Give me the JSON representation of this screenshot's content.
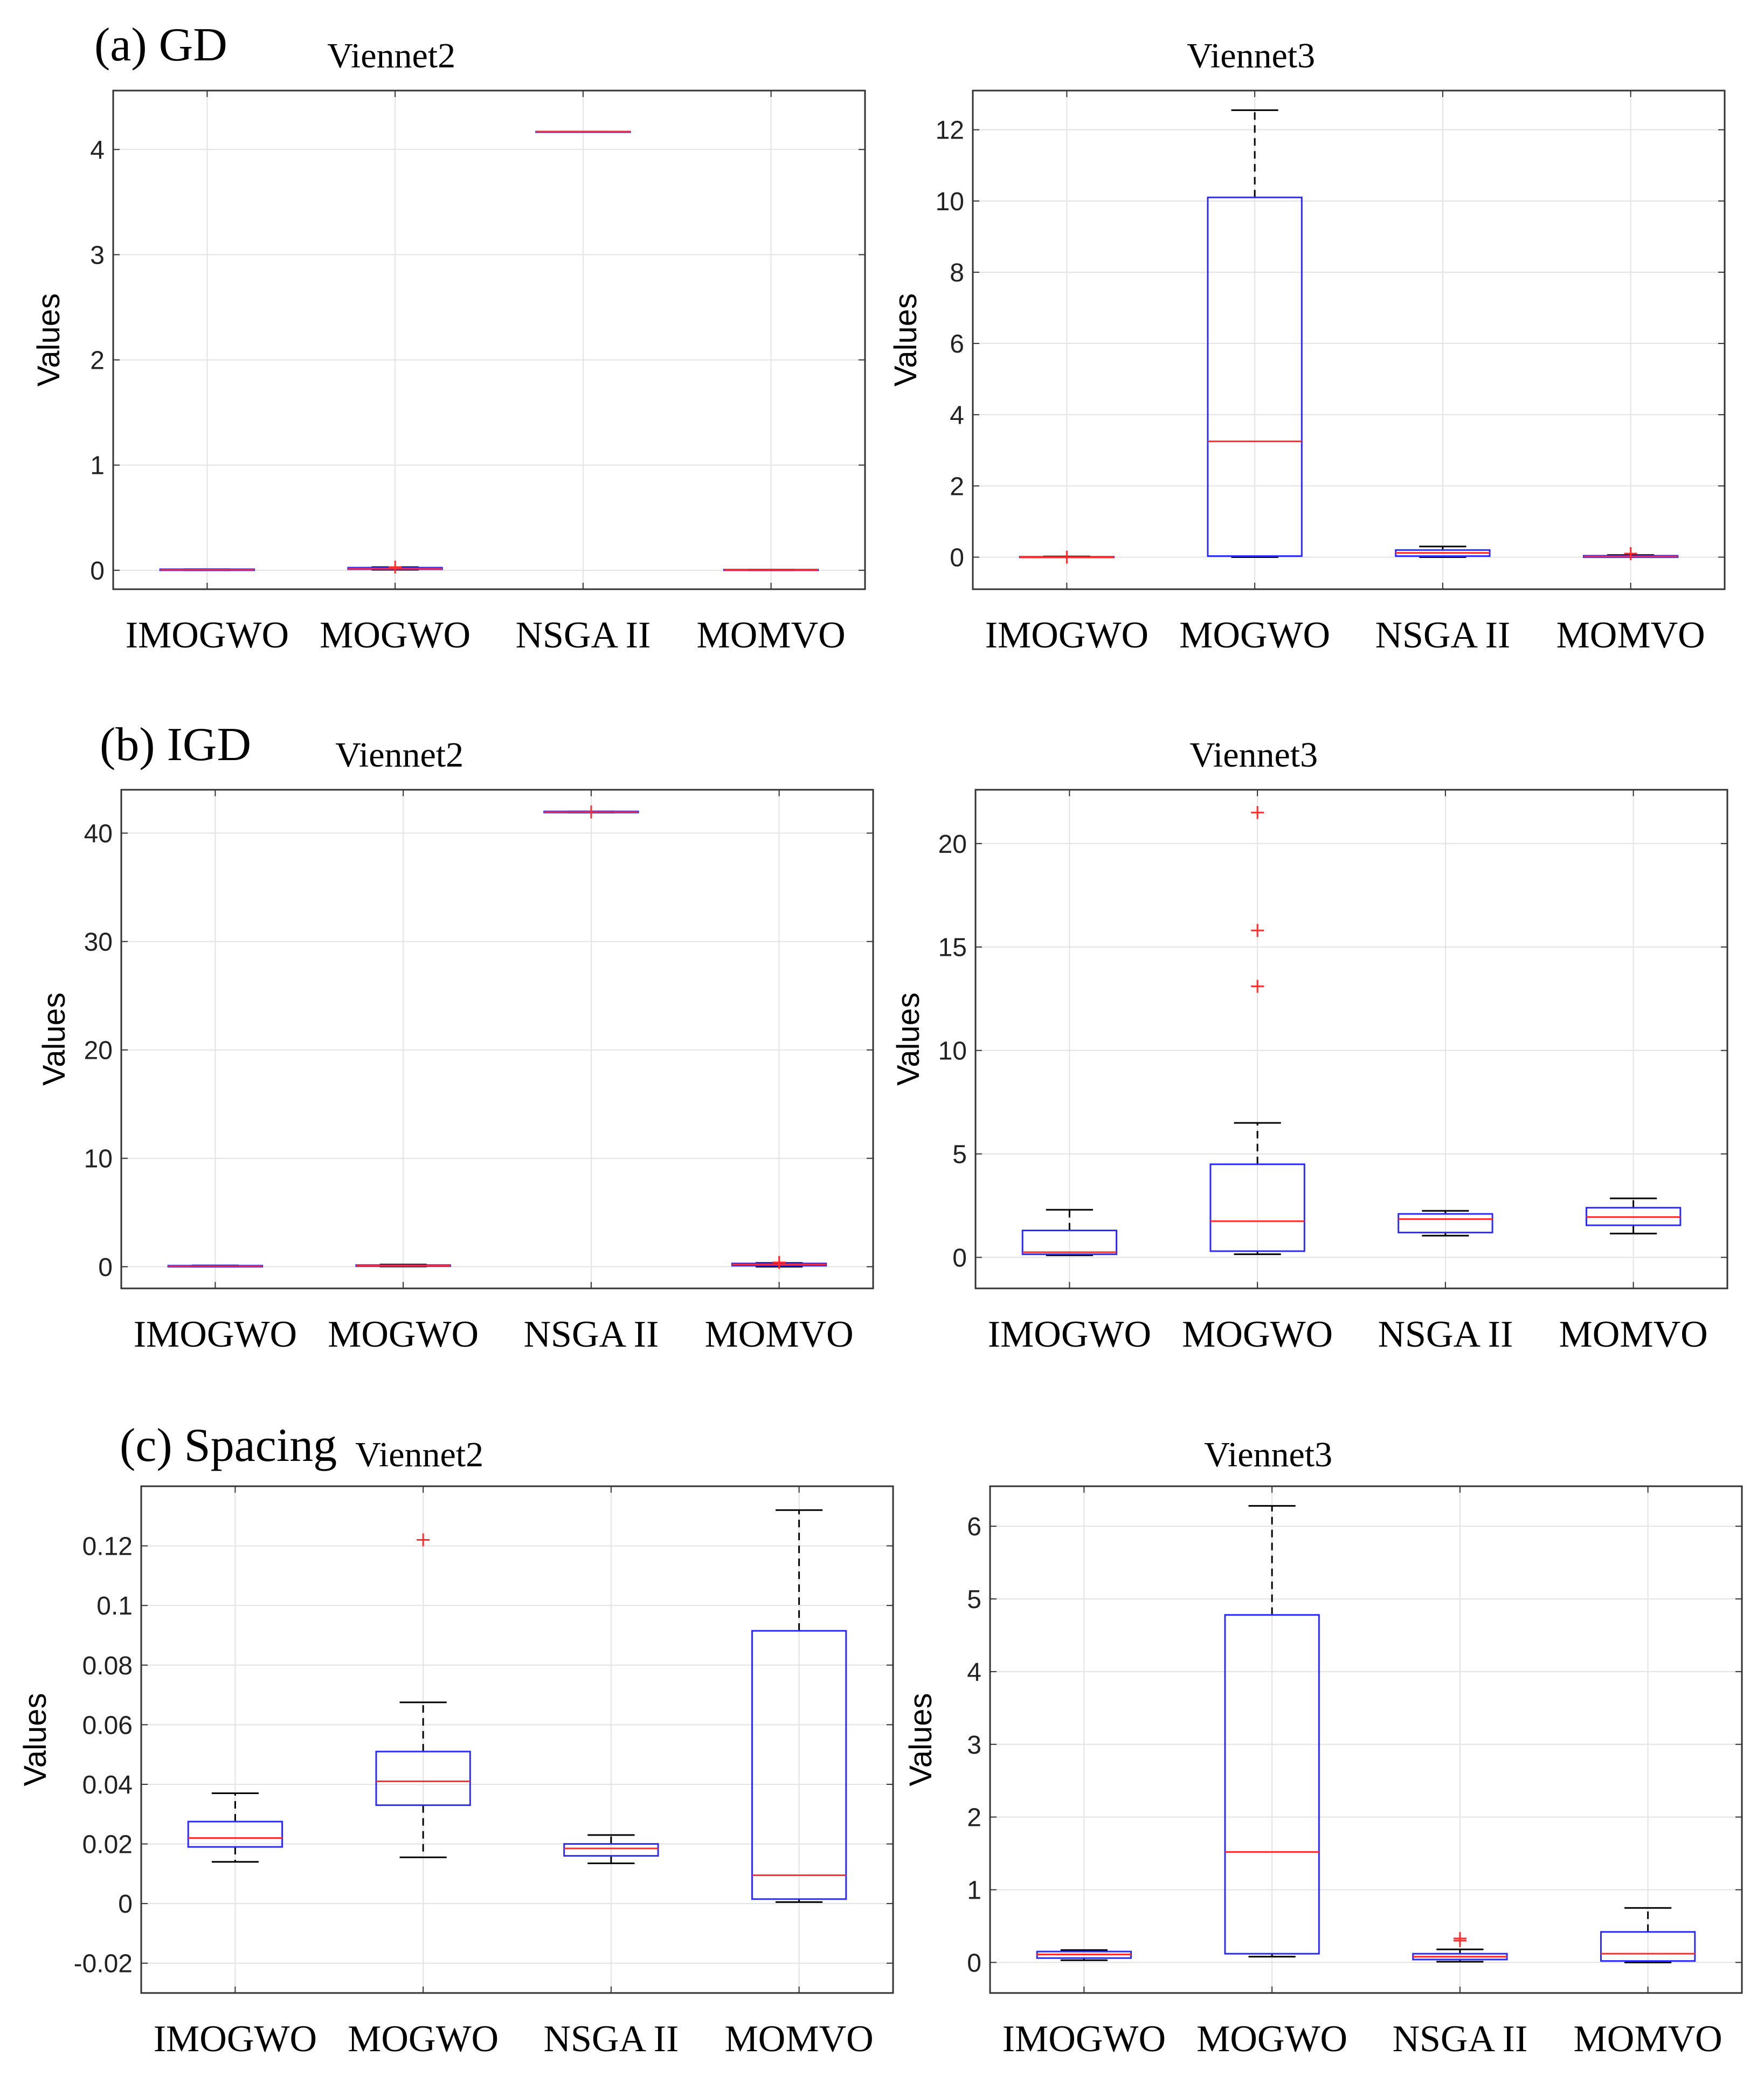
{
  "figure": {
    "section_labels": [
      "(a) GD",
      "(b) IGD",
      "(c) Spacing"
    ]
  },
  "chart_data": [
    {
      "type": "box",
      "section": "(a) GD",
      "title": "Viennet2",
      "ylabel": "Values",
      "categories": [
        "IMOGWO",
        "MOGWO",
        "NSGA II",
        "MOMVO"
      ],
      "ylim": [
        -0.18,
        4.56
      ],
      "yticks": [
        0,
        1,
        2,
        3,
        4
      ],
      "ytick_labels": [
        "0",
        "1",
        "2",
        "3",
        "4"
      ],
      "grid": true,
      "boxes": [
        {
          "q1": 0.0,
          "median": 0.005,
          "q3": 0.01,
          "whisker_low": 0.0,
          "whisker_high": 0.01,
          "outliers": []
        },
        {
          "q1": 0.01,
          "median": 0.015,
          "q3": 0.025,
          "whisker_low": 0.005,
          "whisker_high": 0.03,
          "outliers": [
            0.03
          ]
        },
        {
          "q1": 4.17,
          "median": 4.17,
          "q3": 4.17,
          "whisker_low": 4.17,
          "whisker_high": 4.17,
          "outliers": []
        },
        {
          "q1": 0.0,
          "median": 0.003,
          "q3": 0.006,
          "whisker_low": 0.0,
          "whisker_high": 0.006,
          "outliers": []
        }
      ]
    },
    {
      "type": "box",
      "section": "(a) GD",
      "title": "Viennet3",
      "ylabel": "Values",
      "categories": [
        "IMOGWO",
        "MOGWO",
        "NSGA II",
        "MOMVO"
      ],
      "ylim": [
        -0.9,
        13.1
      ],
      "yticks": [
        0,
        2,
        4,
        6,
        8,
        10,
        12
      ],
      "ytick_labels": [
        "0",
        "2",
        "4",
        "6",
        "8",
        "10",
        "12"
      ],
      "grid": true,
      "boxes": [
        {
          "q1": 0.0,
          "median": 0.0,
          "q3": 0.01,
          "whisker_low": 0.0,
          "whisker_high": 0.02,
          "outliers": [
            0.0
          ]
        },
        {
          "q1": 0.03,
          "median": 3.25,
          "q3": 10.1,
          "whisker_low": 0.0,
          "whisker_high": 12.55,
          "outliers": []
        },
        {
          "q1": 0.03,
          "median": 0.12,
          "q3": 0.2,
          "whisker_low": 0.0,
          "whisker_high": 0.3,
          "outliers": []
        },
        {
          "q1": 0.0,
          "median": 0.02,
          "q3": 0.04,
          "whisker_low": 0.0,
          "whisker_high": 0.06,
          "outliers": [
            0.1
          ]
        }
      ]
    },
    {
      "type": "box",
      "section": "(b) IGD",
      "title": "Viennet2",
      "ylabel": "Values",
      "categories": [
        "IMOGWO",
        "MOGWO",
        "NSGA II",
        "MOMVO"
      ],
      "ylim": [
        -2.0,
        44.0
      ],
      "yticks": [
        0,
        10,
        20,
        30,
        40
      ],
      "ytick_labels": [
        "0",
        "10",
        "20",
        "30",
        "40"
      ],
      "grid": true,
      "boxes": [
        {
          "q1": 0.0,
          "median": 0.05,
          "q3": 0.1,
          "whisker_low": 0.0,
          "whisker_high": 0.12,
          "outliers": []
        },
        {
          "q1": 0.05,
          "median": 0.1,
          "q3": 0.15,
          "whisker_low": 0.02,
          "whisker_high": 0.2,
          "outliers": []
        },
        {
          "q1": 41.9,
          "median": 41.95,
          "q3": 42.0,
          "whisker_low": 41.9,
          "whisker_high": 42.0,
          "outliers": [
            41.95
          ]
        },
        {
          "q1": 0.1,
          "median": 0.2,
          "q3": 0.3,
          "whisker_low": 0.0,
          "whisker_high": 0.35,
          "outliers": [
            0.4
          ]
        }
      ]
    },
    {
      "type": "box",
      "section": "(b) IGD",
      "title": "Viennet3",
      "ylabel": "Values",
      "categories": [
        "IMOGWO",
        "MOGWO",
        "NSGA II",
        "MOMVO"
      ],
      "ylim": [
        -1.5,
        22.6
      ],
      "yticks": [
        0,
        5,
        10,
        15,
        20
      ],
      "ytick_labels": [
        "0",
        "5",
        "10",
        "15",
        "20"
      ],
      "grid": true,
      "boxes": [
        {
          "q1": 0.15,
          "median": 0.25,
          "q3": 1.3,
          "whisker_low": 0.1,
          "whisker_high": 2.3,
          "outliers": []
        },
        {
          "q1": 0.3,
          "median": 1.75,
          "q3": 4.5,
          "whisker_low": 0.15,
          "whisker_high": 6.5,
          "outliers": [
            13.1,
            15.8,
            21.5
          ]
        },
        {
          "q1": 1.2,
          "median": 1.85,
          "q3": 2.1,
          "whisker_low": 1.05,
          "whisker_high": 2.25,
          "outliers": []
        },
        {
          "q1": 1.55,
          "median": 1.95,
          "q3": 2.4,
          "whisker_low": 1.15,
          "whisker_high": 2.85,
          "outliers": []
        }
      ]
    },
    {
      "type": "box",
      "section": "(c) Spacing",
      "title": "Viennet2",
      "ylabel": "Values",
      "categories": [
        "IMOGWO",
        "MOGWO",
        "NSGA II",
        "MOMVO"
      ],
      "ylim": [
        -0.03,
        0.14
      ],
      "yticks": [
        -0.02,
        0,
        0.02,
        0.04,
        0.06,
        0.08,
        0.1,
        0.12
      ],
      "ytick_labels": [
        "-0.02",
        "0",
        "0.02",
        "0.04",
        "0.06",
        "0.08",
        "0.1",
        "0.12"
      ],
      "grid": true,
      "boxes": [
        {
          "q1": 0.019,
          "median": 0.022,
          "q3": 0.0275,
          "whisker_low": 0.014,
          "whisker_high": 0.037,
          "outliers": []
        },
        {
          "q1": 0.033,
          "median": 0.041,
          "q3": 0.051,
          "whisker_low": 0.0155,
          "whisker_high": 0.0675,
          "outliers": [
            0.122
          ]
        },
        {
          "q1": 0.016,
          "median": 0.0185,
          "q3": 0.02,
          "whisker_low": 0.0135,
          "whisker_high": 0.023,
          "outliers": []
        },
        {
          "q1": 0.0015,
          "median": 0.0095,
          "q3": 0.0915,
          "whisker_low": 0.0005,
          "whisker_high": 0.132,
          "outliers": []
        }
      ]
    },
    {
      "type": "box",
      "section": "(c) Spacing",
      "title": "Viennet3",
      "ylabel": "Values",
      "categories": [
        "IMOGWO",
        "MOGWO",
        "NSGA II",
        "MOMVO"
      ],
      "ylim": [
        -0.42,
        6.55
      ],
      "yticks": [
        0,
        1,
        2,
        3,
        4,
        5,
        6
      ],
      "ytick_labels": [
        "0",
        "1",
        "2",
        "3",
        "4",
        "5",
        "6"
      ],
      "grid": true,
      "boxes": [
        {
          "q1": 0.06,
          "median": 0.11,
          "q3": 0.15,
          "whisker_low": 0.03,
          "whisker_high": 0.17,
          "outliers": []
        },
        {
          "q1": 0.12,
          "median": 1.52,
          "q3": 4.78,
          "whisker_low": 0.08,
          "whisker_high": 6.28,
          "outliers": []
        },
        {
          "q1": 0.04,
          "median": 0.08,
          "q3": 0.12,
          "whisker_low": 0.01,
          "whisker_high": 0.18,
          "outliers": [
            0.3,
            0.33
          ]
        },
        {
          "q1": 0.02,
          "median": 0.12,
          "q3": 0.42,
          "whisker_low": 0.0,
          "whisker_high": 0.75,
          "outliers": []
        }
      ]
    }
  ]
}
